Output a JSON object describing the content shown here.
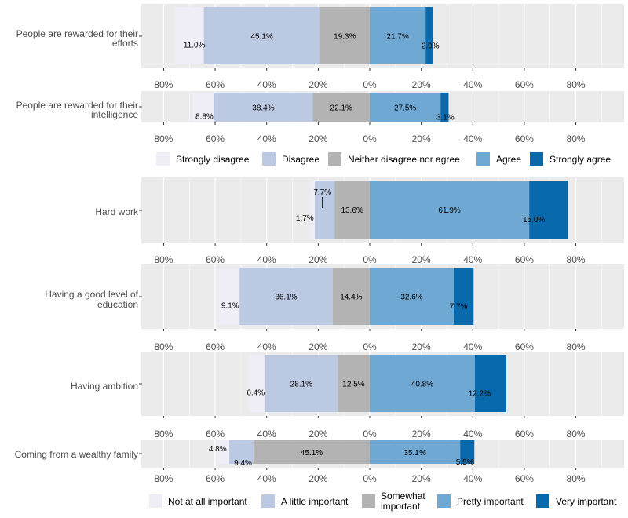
{
  "chart_data": [
    {
      "type": "bar",
      "orientation": "horizontal-diverging",
      "xlim": [
        -100,
        100
      ],
      "tick_labels": [
        "80%",
        "60%",
        "40%",
        "20%",
        "0%",
        "20%",
        "40%",
        "60%",
        "80%"
      ],
      "categories": [
        "People are rewarded for their efforts",
        "People are rewarded for their intelligence"
      ],
      "series": [
        {
          "name": "Strongly disagree",
          "values": [
            11.0,
            8.8
          ]
        },
        {
          "name": "Disagree",
          "values": [
            45.1,
            38.4
          ]
        },
        {
          "name": "Neither disagree nor agree",
          "values": [
            19.3,
            22.1
          ]
        },
        {
          "name": "Agree",
          "values": [
            21.7,
            27.5
          ]
        },
        {
          "name": "Strongly agree",
          "values": [
            2.9,
            3.1
          ]
        }
      ],
      "legend_position": "bottom",
      "grid": true
    },
    {
      "type": "bar",
      "orientation": "horizontal-diverging",
      "xlim": [
        -100,
        100
      ],
      "tick_labels": [
        "80%",
        "60%",
        "40%",
        "20%",
        "0%",
        "20%",
        "40%",
        "60%",
        "80%"
      ],
      "categories": [
        "Hard work",
        "Having a good level of education",
        "Having ambition",
        "Coming from a wealthy family"
      ],
      "series": [
        {
          "name": "Not at all important",
          "values": [
            1.7,
            9.1,
            6.4,
            4.8
          ]
        },
        {
          "name": "A little important",
          "values": [
            7.7,
            36.1,
            28.1,
            9.4
          ]
        },
        {
          "name": "Somewhat important",
          "values": [
            13.6,
            14.4,
            12.5,
            45.1
          ]
        },
        {
          "name": "Pretty important",
          "values": [
            61.9,
            32.6,
            40.8,
            35.1
          ]
        },
        {
          "name": "Very important",
          "values": [
            15.0,
            7.7,
            12.2,
            5.5
          ]
        }
      ],
      "legend_position": "bottom",
      "grid": true
    }
  ],
  "colors": [
    "#efedf5",
    "#bcc9e3",
    "#b3b3b3",
    "#6fa8d3",
    "#0869ad"
  ],
  "panel_bg": "#ebebeb",
  "grid_color": "#ffffff",
  "text_color": "#4d4d4d"
}
